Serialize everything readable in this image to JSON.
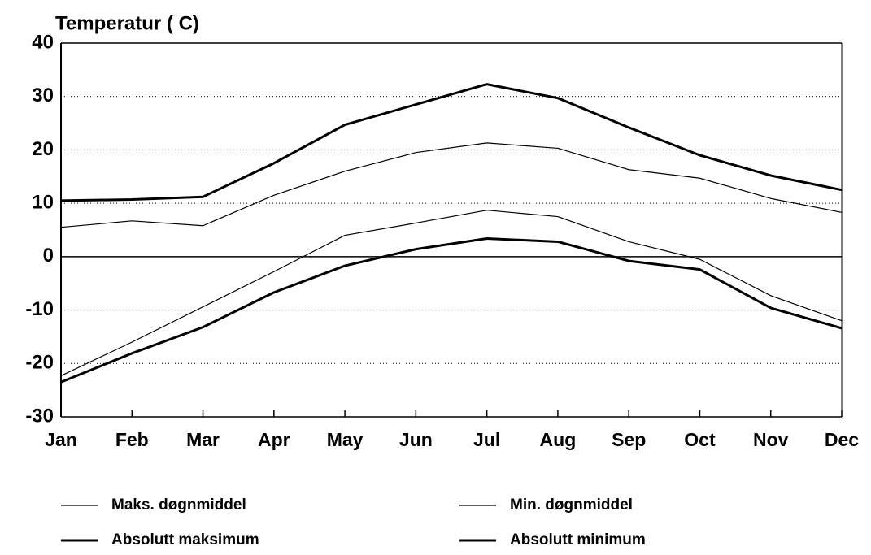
{
  "chart_data": {
    "type": "line",
    "y_label": "Temperatur ( C)",
    "categories": [
      "Jan",
      "Feb",
      "Mar",
      "Apr",
      "May",
      "Jun",
      "Jul",
      "Aug",
      "Sep",
      "Oct",
      "Nov",
      "Dec"
    ],
    "series": [
      {
        "name": "Maks. døgnmiddel",
        "color": "#000000",
        "line_width": 1.2,
        "values": [
          5.5,
          6.7,
          5.8,
          11.5,
          16,
          19.5,
          21.3,
          20.3,
          16.3,
          14.7,
          10.9,
          8.3
        ]
      },
      {
        "name": "Min. døgnmiddel",
        "color": "#000000",
        "line_width": 1.2,
        "values": [
          -22.3,
          -16,
          -9.4,
          -2.8,
          4,
          6.3,
          8.7,
          7.5,
          2.8,
          -0.5,
          -7.3,
          -12
        ]
      },
      {
        "name": "Absolutt maksimum",
        "color": "#000000",
        "line_width": 3,
        "values": [
          10.5,
          10.7,
          11.2,
          17.5,
          24.7,
          28.5,
          32.3,
          29.7,
          24.2,
          19,
          15.2,
          12.5
        ]
      },
      {
        "name": "Absolutt minimum",
        "color": "#000000",
        "line_width": 3,
        "values": [
          -23.5,
          -18.1,
          -13.2,
          -6.7,
          -1.7,
          1.4,
          3.4,
          2.8,
          -0.8,
          -2.4,
          -9.6,
          -13.4
        ]
      }
    ],
    "ylim": [
      -30,
      40
    ],
    "yticks": [
      -30,
      -20,
      -10,
      0,
      10,
      20,
      30,
      40
    ],
    "grid": true
  }
}
